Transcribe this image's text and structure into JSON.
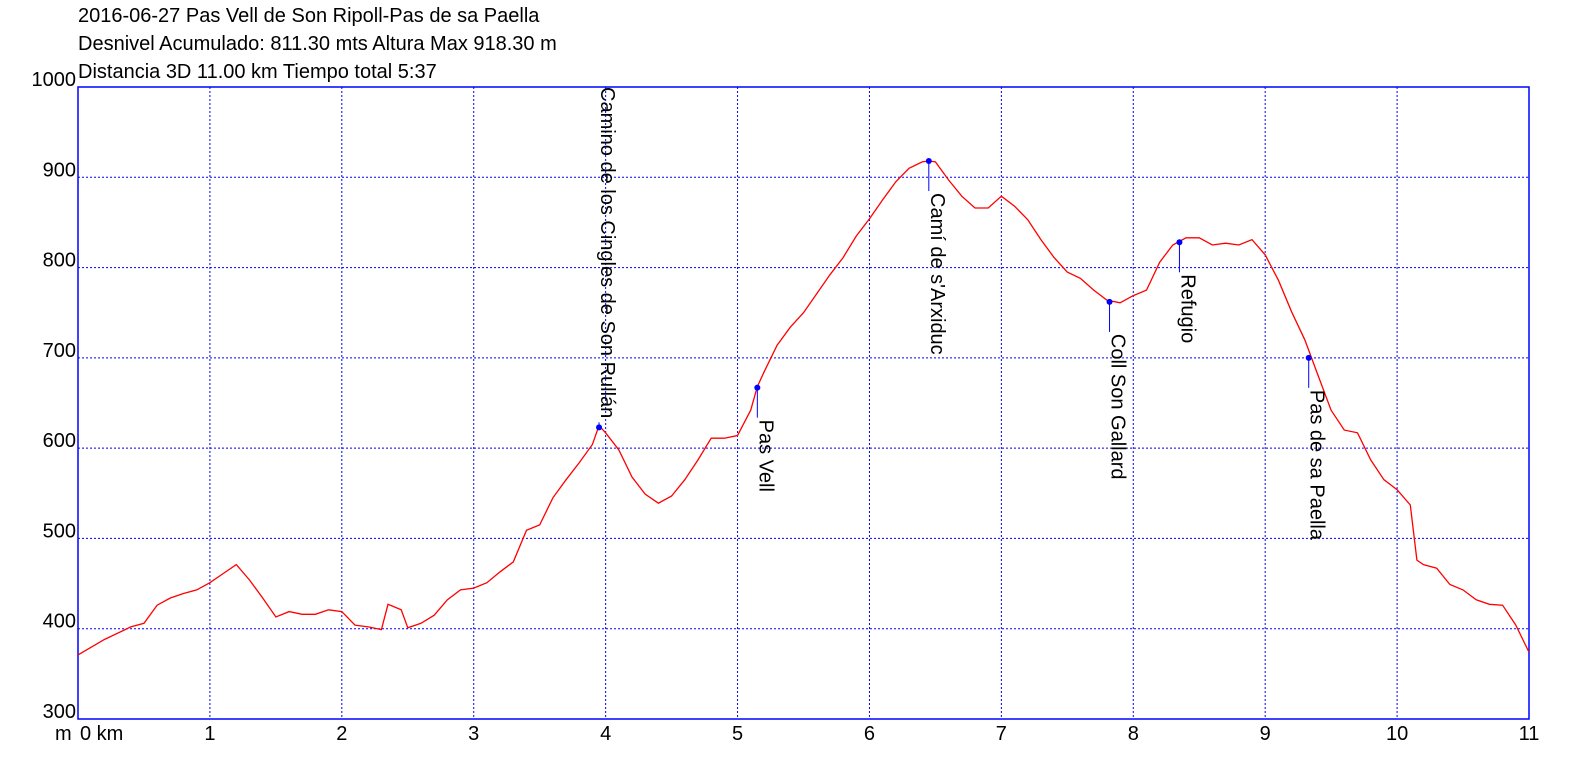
{
  "chart_data": {
    "type": "line",
    "title_lines": [
      "2016-06-27 Pas Vell de Son Ripoll-Pas de sa Paella",
      "Desnivel Acumulado: 811.30 mts  Altura Max 918.30 m",
      "Distancia 3D 11.00 km  Tiempo total 5:37"
    ],
    "y_label": "m",
    "xlim": [
      0,
      11
    ],
    "ylim": [
      300,
      1000
    ],
    "xticks": [
      {
        "value": 0,
        "label": "0 km"
      },
      1,
      2,
      3,
      4,
      5,
      6,
      7,
      8,
      9,
      10,
      11
    ],
    "yticks": [
      300,
      400,
      500,
      600,
      700,
      800,
      900,
      1000
    ],
    "grid": true,
    "x": [
      0,
      0.2,
      0.4,
      0.5,
      0.6,
      0.7,
      0.8,
      0.9,
      1.0,
      1.1,
      1.2,
      1.3,
      1.4,
      1.5,
      1.6,
      1.7,
      1.8,
      1.9,
      2.0,
      2.1,
      2.2,
      2.3,
      2.35,
      2.45,
      2.5,
      2.6,
      2.7,
      2.8,
      2.9,
      3.0,
      3.1,
      3.2,
      3.3,
      3.4,
      3.5,
      3.6,
      3.7,
      3.8,
      3.9,
      3.95,
      4.0,
      4.1,
      4.2,
      4.3,
      4.4,
      4.5,
      4.6,
      4.7,
      4.8,
      4.9,
      5.0,
      5.1,
      5.15,
      5.2,
      5.3,
      5.4,
      5.5,
      5.6,
      5.7,
      5.8,
      5.9,
      6.0,
      6.1,
      6.2,
      6.3,
      6.4,
      6.45,
      6.5,
      6.6,
      6.7,
      6.8,
      6.9,
      7.0,
      7.1,
      7.2,
      7.3,
      7.4,
      7.5,
      7.6,
      7.7,
      7.8,
      7.9,
      8.0,
      8.1,
      8.2,
      8.3,
      8.4,
      8.5,
      8.6,
      8.7,
      8.8,
      8.9,
      9.0,
      9.1,
      9.2,
      9.3,
      9.4,
      9.5,
      9.6,
      9.7,
      9.8,
      9.9,
      10.0,
      10.1,
      10.15,
      10.2,
      10.3,
      10.4,
      10.5,
      10.6,
      10.7,
      10.8,
      10.9,
      11.0
    ],
    "series": [
      {
        "color": "#ff0000",
        "values": [
          371,
          388,
          402,
          406,
          426,
          434,
          439,
          443,
          451,
          461,
          471,
          454,
          434,
          413,
          419,
          416,
          416,
          421,
          419,
          404,
          402,
          399,
          427,
          421,
          401,
          406,
          415,
          432,
          443,
          445,
          451,
          463,
          474,
          509,
          515,
          545,
          565,
          584,
          604,
          625,
          617,
          598,
          568,
          549,
          539,
          547,
          565,
          587,
          611,
          611,
          614,
          642,
          668,
          684,
          714,
          734,
          750,
          771,
          792,
          811,
          835,
          854,
          875,
          895,
          910,
          917,
          918,
          917,
          897,
          879,
          866,
          866,
          879,
          868,
          853,
          831,
          811,
          795,
          788,
          775,
          764,
          761,
          769,
          775,
          806,
          825,
          833,
          833,
          825,
          827,
          825,
          831,
          814,
          786,
          751,
          720,
          681,
          642,
          620,
          617,
          587,
          565,
          554,
          537,
          476,
          471,
          467,
          449,
          443,
          432,
          427,
          426,
          404,
          374
        ]
      }
    ],
    "annotations": [
      {
        "x": 3.95,
        "y": 623,
        "label": "Camino de los Cingles de Son Rullán"
      },
      {
        "x": 5.15,
        "y": 667,
        "label": "Pas Vell"
      },
      {
        "x": 6.45,
        "y": 918,
        "label": "Camí de s'Arxiduc"
      },
      {
        "x": 7.82,
        "y": 762,
        "label": "Coll Son Gallard"
      },
      {
        "x": 8.35,
        "y": 828,
        "label": "Refugio"
      },
      {
        "x": 9.33,
        "y": 700,
        "label": "Pas de sa Paella"
      }
    ]
  }
}
